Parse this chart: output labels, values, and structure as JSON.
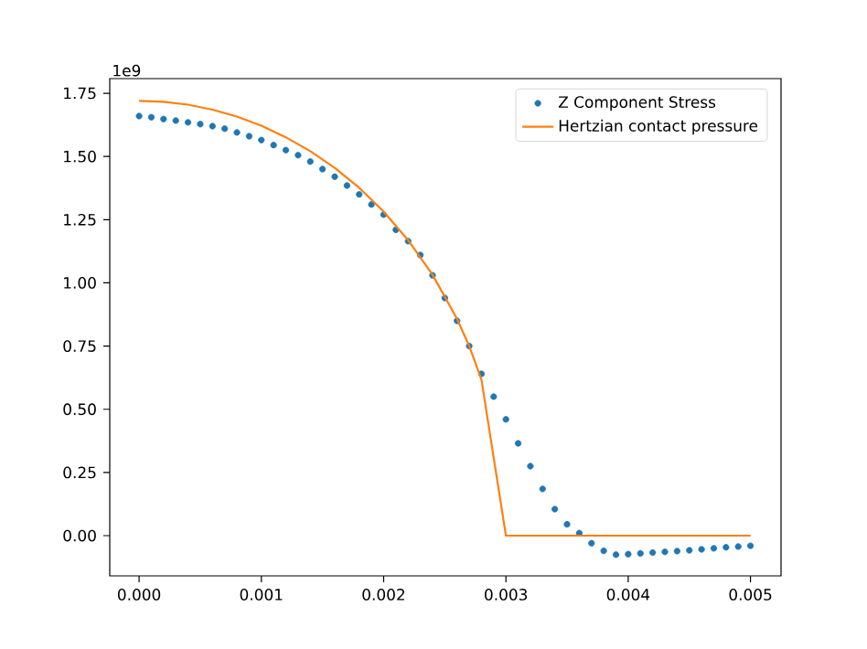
{
  "chart_data": {
    "type": "line",
    "annotations": [
      "1e9"
    ],
    "xlim": [
      -0.00024,
      0.00525
    ],
    "ylim": [
      -0.159,
      1.808
    ],
    "xticks": [
      {
        "value": 0,
        "label": "0.000"
      },
      {
        "value": 0.001,
        "label": "0.001"
      },
      {
        "value": 0.002,
        "label": "0.002"
      },
      {
        "value": 0.003,
        "label": "0.003"
      },
      {
        "value": 0.004,
        "label": "0.004"
      },
      {
        "value": 0.005,
        "label": "0.005"
      }
    ],
    "yticks": [
      {
        "value": 0,
        "label": "0.00"
      },
      0.25,
      {
        "value": 0.5,
        "label": "0.50"
      },
      0.75,
      {
        "value": 1.0,
        "label": "1.00"
      },
      1.25,
      {
        "value": 1.5,
        "label": "1.50"
      },
      1.75
    ],
    "legend": "top right",
    "grid": false,
    "series": [
      {
        "name": "Z Component Stress",
        "type": "scatter",
        "marker": "circle",
        "color": "#1f77b4",
        "x": [
          0,
          0.0001,
          0.0002,
          0.0003,
          0.0004,
          0.0005,
          0.0006,
          0.0007,
          0.0008,
          0.0009,
          0.001,
          0.0011,
          0.0012,
          0.0013,
          0.0014,
          0.0015,
          0.0016,
          0.0017,
          0.0018,
          0.0019,
          0.002,
          0.0021,
          0.0022,
          0.0023,
          0.0024,
          0.0025,
          0.0026,
          0.0027,
          0.0028,
          0.0029,
          0.003,
          0.0031,
          0.0032,
          0.0033,
          0.0034,
          0.0035,
          0.0036,
          0.0037,
          0.0038,
          0.0039,
          0.004,
          0.0041,
          0.0042,
          0.0043,
          0.0044,
          0.0045,
          0.0046,
          0.0047,
          0.0048,
          0.0049,
          0.005
        ],
        "values": [
          1.66,
          1.655,
          1.648,
          1.642,
          1.635,
          1.628,
          1.62,
          1.61,
          1.595,
          1.58,
          1.565,
          1.545,
          1.525,
          1.505,
          1.48,
          1.45,
          1.42,
          1.385,
          1.35,
          1.31,
          1.27,
          1.21,
          1.165,
          1.11,
          1.03,
          0.94,
          0.85,
          0.75,
          0.64,
          0.55,
          0.46,
          0.365,
          0.275,
          0.185,
          0.105,
          0.045,
          0.01,
          -0.03,
          -0.06,
          -0.075,
          -0.073,
          -0.07,
          -0.067,
          -0.064,
          -0.061,
          -0.058,
          -0.054,
          -0.05,
          -0.046,
          -0.043,
          -0.04
        ]
      },
      {
        "name": "Hertzian contact pressure",
        "marker": "none",
        "line_style": "solid",
        "color": "#ff7f0e",
        "x": [
          0,
          0.0002,
          0.0004,
          0.0006,
          0.0008,
          0.001,
          0.0012,
          0.0014,
          0.0016,
          0.0018,
          0.002,
          0.0022,
          0.0024,
          0.0026,
          0.0027,
          0.0028,
          0.003,
          0.005
        ],
        "values": [
          1.72,
          1.716,
          1.705,
          1.685,
          1.658,
          1.622,
          1.576,
          1.521,
          1.455,
          1.376,
          1.282,
          1.169,
          1.032,
          0.858,
          0.75,
          0.617,
          0,
          0
        ]
      }
    ]
  }
}
